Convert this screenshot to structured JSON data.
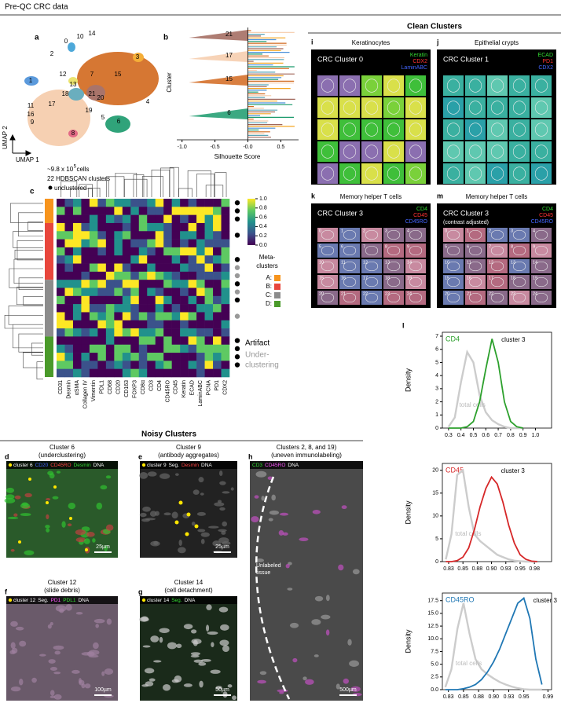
{
  "header": {
    "title": "Pre-QC CRC data"
  },
  "panel_a": {
    "letter": "a",
    "clusters": [
      "10",
      "14",
      "0",
      "2",
      "3",
      "12",
      "7",
      "15",
      "13",
      "1",
      "18",
      "21",
      "20",
      "4",
      "19",
      "11",
      "17",
      "16",
      "9",
      "5",
      "8",
      "6"
    ],
    "y_axis": "UMAP 2",
    "x_axis": "UMAP 1",
    "notes": [
      "~9.8 x 10",
      "5",
      " cells",
      "22 HDBSCAN clusters",
      "unclustered"
    ]
  },
  "panel_b": {
    "letter": "b",
    "ylabel": "Cluster",
    "xlabel": "Silhouette Score",
    "xlim": [
      -1.08,
      0.77
    ],
    "xticks": [
      {
        "value": -1,
        "label": "-1.0"
      },
      -0.5,
      {
        "value": 0,
        "label": "-0.0"
      },
      0.5
    ],
    "clusters": [
      "21",
      "17",
      "15",
      "6"
    ]
  },
  "panel_c": {
    "letter": "c",
    "columns": [
      "CD31",
      "Desmin",
      "αSMA",
      "Collagen IV",
      "Vimentin",
      "PDL1",
      "CD68",
      "CD20",
      "CD163",
      "FOXP3",
      "CD8α",
      "CD3",
      "CD4",
      "CD45RO",
      "CD45",
      "Keratin",
      "ECAD",
      "LaminABC",
      "PCNA",
      "PD1",
      "CDX2"
    ],
    "colorbar_ticks": [
      {
        "value": 1,
        "label": "1.0"
      },
      0.8,
      0.6,
      0.4,
      0.2,
      {
        "value": 0,
        "label": "0.0"
      }
    ],
    "colorbar_colors": [
      "#440154",
      "#3b528b",
      "#21918c",
      "#5ec962",
      "#fde725"
    ],
    "meta_title": [
      "Meta-",
      "clusters"
    ],
    "meta": [
      {
        "label": "A:",
        "color": "#f7941d"
      },
      {
        "label": "B:",
        "color": "#e8463c"
      },
      {
        "label": "C:",
        "color": "#8c8c8c"
      },
      {
        "label": "D:",
        "color": "#4a9a2a"
      }
    ],
    "artifact": "Artifact",
    "underclustering": [
      "Under-",
      "clustering"
    ]
  },
  "clean": {
    "title": "Clean Clusters",
    "panels": [
      {
        "letter": "i",
        "title": "Keratinocytes",
        "cluster": "CRC Cluster  0",
        "markers": [
          {
            "label": "Keratin",
            "color": "#33dd33"
          },
          {
            "label": "CDX2",
            "color": "#ff3333"
          },
          {
            "label": "LaminABC",
            "color": "#4466ff"
          }
        ]
      },
      {
        "letter": "j",
        "title": "Epithelial crypts",
        "cluster": "CRC Cluster  1",
        "markers": [
          {
            "label": "ECAD",
            "color": "#33dd33"
          },
          {
            "label": "PD1",
            "color": "#ff3333"
          },
          {
            "label": "CDX2",
            "color": "#4466ff"
          }
        ]
      },
      {
        "letter": "k",
        "title": "Memory helper T cells",
        "cluster": "CRC Cluster  3",
        "markers": [
          {
            "label": "CD4",
            "color": "#33dd33"
          },
          {
            "label": "CD45",
            "color": "#ff3333"
          },
          {
            "label": "CD45RO",
            "color": "#4466ff"
          }
        ]
      },
      {
        "letter": "m",
        "title": "Memory helper T cells",
        "cluster": "CRC Cluster  3",
        "subtitle": "(contrast adjusted)",
        "markers": [
          {
            "label": "CD4",
            "color": "#33dd33"
          },
          {
            "label": "CD45",
            "color": "#ff3333"
          },
          {
            "label": "CD45RO",
            "color": "#4466ff"
          }
        ]
      }
    ],
    "tiles": [
      "0",
      "1",
      "2",
      "3",
      "4",
      "5",
      "6",
      "7",
      "8",
      "9",
      "10",
      "11",
      "12",
      "13",
      "14",
      "15",
      "16",
      "17",
      "18",
      "19",
      "20",
      "21",
      "22",
      "23",
      "24"
    ]
  },
  "noisy": {
    "title": "Noisy Clusters",
    "panels": [
      {
        "letter": "d",
        "title": [
          "Cluster 6",
          "(underclustering)"
        ],
        "legend": [
          {
            "label": "cluster 6",
            "color": "#ffffff"
          },
          {
            "label": "CD20",
            "color": "#4466ff"
          },
          {
            "label": "CD45RO",
            "color": "#ff4444"
          },
          {
            "label": "Desmin",
            "color": "#33dd33"
          },
          {
            "label": "DNA",
            "color": "#ffffff"
          }
        ],
        "scale": "25µm"
      },
      {
        "letter": "e",
        "title": [
          "Cluster 9",
          "(antibody aggregates)"
        ],
        "legend": [
          {
            "label": "cluster 9",
            "color": "#ffffff"
          },
          {
            "label": "Seg.",
            "color": "#ffffff"
          },
          {
            "label": "Desmin",
            "color": "#ff4444"
          },
          {
            "label": "DNA",
            "color": "#ffffff"
          }
        ],
        "scale": "25µm"
      },
      {
        "letter": "f",
        "title": [
          "Cluster 12",
          "(slide debris)"
        ],
        "legend": [
          {
            "label": "cluster 12",
            "color": "#ffffff"
          },
          {
            "label": "Seg.",
            "color": "#ffffff"
          },
          {
            "label": "PD1",
            "color": "#ff55ff"
          },
          {
            "label": "PDL1",
            "color": "#33dd33"
          },
          {
            "label": "DNA",
            "color": "#ffffff"
          }
        ],
        "scale": "100µm"
      },
      {
        "letter": "g",
        "title": [
          "Cluster 14",
          "(cell detachment)"
        ],
        "legend": [
          {
            "label": "cluster 14",
            "color": "#ffffff"
          },
          {
            "label": "Seg.",
            "color": "#33dd33"
          },
          {
            "label": "DNA",
            "color": "#ffffff"
          }
        ],
        "scale": "50µm"
      },
      {
        "letter": "h",
        "title": [
          "Clusters 2, 8, and 19)",
          "(uneven immunolabeling)"
        ],
        "legend": [
          {
            "label": "CD3",
            "color": "#33dd33"
          },
          {
            "label": "CD45RO",
            "color": "#ff55ff"
          },
          {
            "label": "DNA",
            "color": "#ffffff"
          }
        ],
        "scale": "500µm",
        "annotation": [
          "Unlabeled",
          "tissue"
        ]
      }
    ]
  },
  "panel_l": {
    "letter": "l"
  },
  "chart_data": [
    {
      "type": "line",
      "title": "CD4",
      "ylabel": "Density",
      "color": "#2ca02c",
      "x": [
        0.3,
        0.35,
        0.4,
        0.45,
        0.5,
        0.55,
        0.6,
        0.65,
        0.7,
        0.75,
        0.8,
        0.85,
        0.9
      ],
      "series": [
        {
          "name": "total cells",
          "color": "#cccccc",
          "values": [
            0.1,
            0.8,
            3.5,
            5.8,
            5.0,
            2.5,
            1.2,
            0.6,
            0.3,
            0.1,
            0,
            0,
            0
          ]
        },
        {
          "name": "cluster 3",
          "color": "#2ca02c",
          "values": [
            0,
            0,
            0,
            0.1,
            0.5,
            2.0,
            4.5,
            6.8,
            5.0,
            2.0,
            0.5,
            0.1,
            0
          ]
        }
      ],
      "xlim": [
        0.25,
        1.13
      ],
      "ylim": [
        0,
        7.3
      ],
      "xticks": [
        0.3,
        0.4,
        0.5,
        0.6,
        0.7,
        0.8,
        0.9,
        {
          "value": 1,
          "label": "1.0"
        }
      ],
      "yticks": [
        0,
        1,
        2,
        3,
        4,
        5,
        6,
        7
      ]
    },
    {
      "type": "line",
      "title": "CD45",
      "ylabel": "Density",
      "color": "#d62728",
      "x": [
        0.82,
        0.83,
        0.84,
        0.85,
        0.86,
        0.87,
        0.88,
        0.89,
        0.9,
        0.91,
        0.92,
        0.93,
        0.94,
        0.95,
        0.96,
        0.97,
        0.98
      ],
      "series": [
        {
          "name": "total cells",
          "color": "#cccccc",
          "values": [
            0.5,
            6,
            19,
            20,
            12,
            6,
            4.5,
            3.5,
            2.5,
            1.5,
            1,
            0.5,
            0.2,
            0.1,
            0,
            0,
            0
          ]
        },
        {
          "name": "cluster 3",
          "color": "#d62728",
          "values": [
            0,
            0,
            0.2,
            1,
            3,
            7,
            12,
            16,
            18.5,
            17,
            13,
            8,
            4,
            1.5,
            0.5,
            0.1,
            0
          ]
        }
      ],
      "xlim": [
        0.814,
        1.005
      ],
      "ylim": [
        0,
        21.5
      ],
      "xticks": [
        {
          "value": 0.825,
          "label": "0.83"
        },
        0.85,
        {
          "value": 0.875,
          "label": "0.88"
        },
        {
          "value": 0.9,
          "label": "0.90"
        },
        {
          "value": 0.925,
          "label": "0.93"
        },
        0.95,
        {
          "value": 0.975,
          "label": "0.98"
        }
      ],
      "yticks": [
        0,
        5,
        10,
        15,
        20
      ]
    },
    {
      "type": "line",
      "title": "CD45RO",
      "ylabel": "Density",
      "color": "#1f77b4",
      "x": [
        0.82,
        0.83,
        0.84,
        0.85,
        0.86,
        0.87,
        0.88,
        0.89,
        0.9,
        0.91,
        0.92,
        0.93,
        0.94,
        0.95,
        0.96,
        0.97,
        0.98
      ],
      "series": [
        {
          "name": "total cells",
          "color": "#cccccc",
          "values": [
            0.5,
            4,
            12,
            17,
            11,
            6,
            4,
            3,
            2.2,
            1.5,
            1,
            0.6,
            0.3,
            0.1,
            0,
            0,
            0
          ]
        },
        {
          "name": "cluster 3",
          "color": "#1f77b4",
          "values": [
            0,
            0,
            0,
            0.2,
            0.5,
            1,
            2,
            3.5,
            5.5,
            8,
            11,
            14,
            17,
            18,
            14,
            6,
            1
          ]
        }
      ],
      "xlim": [
        0.815,
        0.996
      ],
      "ylim": [
        0,
        19
      ],
      "xticks": [
        {
          "value": 0.825,
          "label": "0.83"
        },
        0.85,
        {
          "value": 0.875,
          "label": "0.88"
        },
        {
          "value": 0.9,
          "label": "0.90"
        },
        {
          "value": 0.925,
          "label": "0.93"
        },
        0.95,
        0.99
      ],
      "yticks": [
        {
          "value": 0,
          "label": "0.0"
        },
        2.5,
        {
          "value": 5,
          "label": "5.0"
        },
        7.5,
        {
          "value": 10,
          "label": "10.0"
        },
        12.5,
        {
          "value": 15,
          "label": "15.0"
        },
        17.5
      ]
    }
  ]
}
